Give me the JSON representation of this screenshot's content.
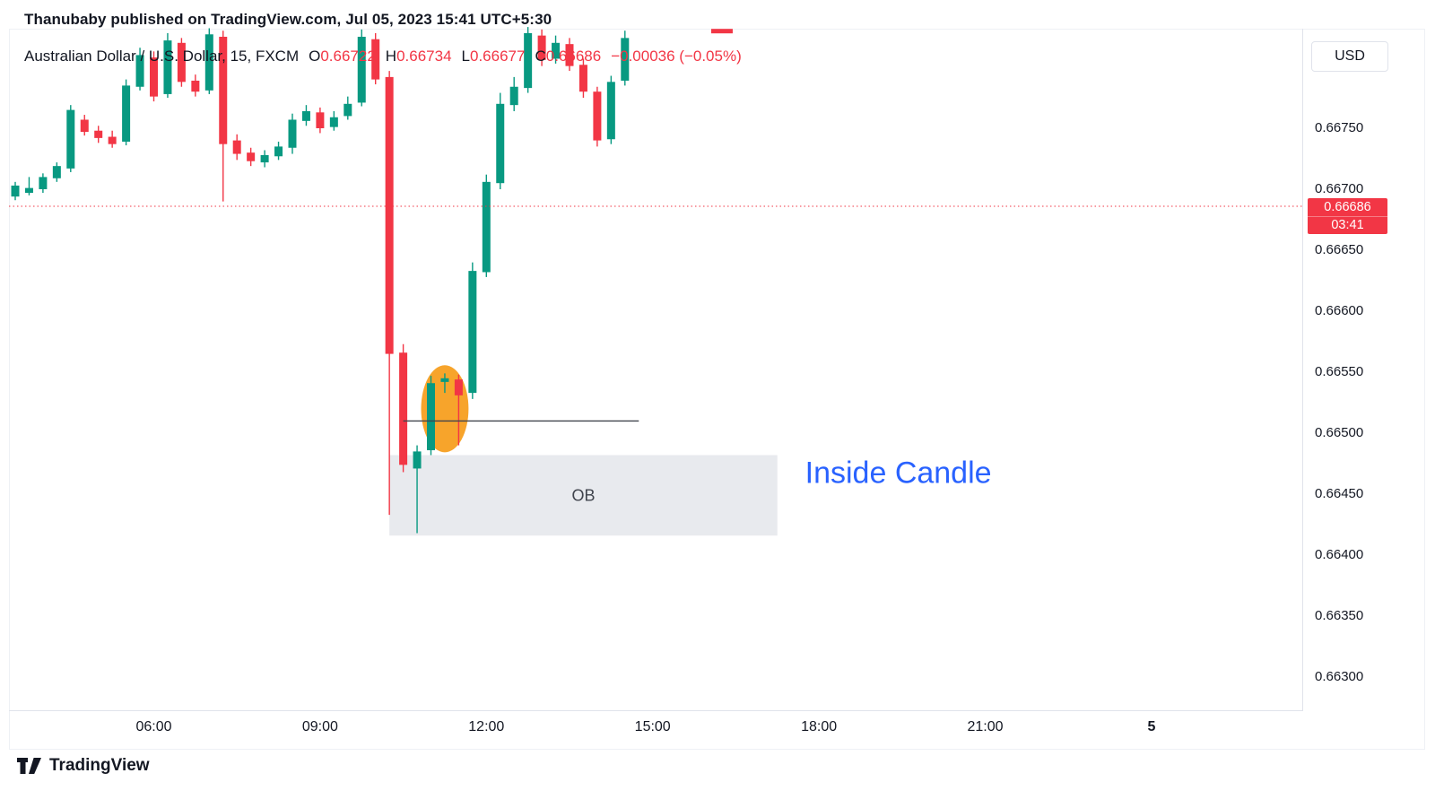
{
  "publisher_line": "Thanubaby published on TradingView.com, Jul 05, 2023 15:41 UTC+5:30",
  "symbol_info": {
    "title": "Australian Dollar / U.S. Dollar, 15, FXCM",
    "ohlc": [
      {
        "key": "O",
        "value": "0.66722"
      },
      {
        "key": "H",
        "value": "0.66734"
      },
      {
        "key": "L",
        "value": "0.66677"
      },
      {
        "key": "C",
        "value": "0.66686"
      }
    ],
    "change": "−0.00036 (−0.05%)"
  },
  "currency_label": "USD",
  "price_scale": {
    "last_price_label": "0.66686",
    "countdown": "03:41"
  },
  "footer": {
    "brand": "TradingView"
  },
  "colors": {
    "up": "#089981",
    "down": "#f23645",
    "accent_red": "#f23645",
    "text_dark": "#131722",
    "annotation_blue": "#2962ff",
    "box_gray": "#e8eaee",
    "orange": "#f7a42b",
    "line_dark": "#40444d",
    "separator": "#e0e3eb"
  },
  "chart_data": {
    "type": "candlestick",
    "title": "Australian Dollar / U.S. Dollar, 15, FXCM",
    "interval_minutes": 15,
    "venue": "FXCM",
    "last_price": 0.66686,
    "y_ticks": [
      "0.66750",
      "0.66700",
      "0.66650",
      "0.66600",
      "0.66550",
      "0.66500",
      "0.66450",
      "0.66400",
      "0.66350",
      "0.66300"
    ],
    "x_ticks": [
      {
        "label": "06:00",
        "time": "06:00",
        "bold": false
      },
      {
        "label": "09:00",
        "time": "09:00",
        "bold": false
      },
      {
        "label": "12:00",
        "time": "12:00",
        "bold": false
      },
      {
        "label": "15:00",
        "time": "15:00",
        "bold": false
      },
      {
        "label": "18:00",
        "time": "18:00",
        "bold": false
      },
      {
        "label": "21:00",
        "time": "21:00",
        "bold": false
      },
      {
        "label": "5",
        "time": "24:00",
        "bold": true
      }
    ],
    "candles": [
      [
        "03:30",
        0.66694,
        0.66706,
        0.66691,
        0.66703
      ],
      [
        "03:45",
        0.66697,
        0.6671,
        0.66695,
        0.66701
      ],
      [
        "04:00",
        0.667,
        0.66713,
        0.66697,
        0.6671
      ],
      [
        "04:15",
        0.66709,
        0.66722,
        0.66706,
        0.66719
      ],
      [
        "04:30",
        0.66717,
        0.66769,
        0.66714,
        0.66765
      ],
      [
        "04:45",
        0.66757,
        0.66761,
        0.66744,
        0.66747
      ],
      [
        "05:00",
        0.66748,
        0.66752,
        0.66738,
        0.66742
      ],
      [
        "05:15",
        0.66743,
        0.66748,
        0.66734,
        0.66737
      ],
      [
        "05:30",
        0.66739,
        0.6679,
        0.66736,
        0.66785
      ],
      [
        "05:45",
        0.66784,
        0.66816,
        0.66781,
        0.6681
      ],
      [
        "06:00",
        0.66808,
        0.66813,
        0.66772,
        0.66776
      ],
      [
        "06:15",
        0.66778,
        0.66828,
        0.66775,
        0.66822
      ],
      [
        "06:30",
        0.6682,
        0.66824,
        0.66784,
        0.66788
      ],
      [
        "06:45",
        0.66789,
        0.66794,
        0.66776,
        0.6678
      ],
      [
        "07:00",
        0.66781,
        0.66832,
        0.66778,
        0.66827
      ],
      [
        "07:15",
        0.66825,
        0.6683,
        0.6669,
        0.66737
      ],
      [
        "07:30",
        0.6674,
        0.66745,
        0.66724,
        0.66729
      ],
      [
        "07:45",
        0.6673,
        0.66734,
        0.66719,
        0.66723
      ],
      [
        "08:00",
        0.66722,
        0.66732,
        0.66718,
        0.66728
      ],
      [
        "08:15",
        0.66727,
        0.66739,
        0.66724,
        0.66735
      ],
      [
        "08:30",
        0.66734,
        0.66762,
        0.66729,
        0.66757
      ],
      [
        "08:45",
        0.66756,
        0.66769,
        0.66752,
        0.66764
      ],
      [
        "09:00",
        0.66763,
        0.66767,
        0.66746,
        0.6675
      ],
      [
        "09:15",
        0.66751,
        0.66764,
        0.66748,
        0.66759
      ],
      [
        "09:30",
        0.6676,
        0.66776,
        0.66757,
        0.6677
      ],
      [
        "09:45",
        0.66771,
        0.66831,
        0.66768,
        0.66825
      ],
      [
        "10:00",
        0.66823,
        0.66828,
        0.66786,
        0.6679
      ],
      [
        "10:15",
        0.66792,
        0.66797,
        0.66433,
        0.66565
      ],
      [
        "10:30",
        0.66566,
        0.66573,
        0.66468,
        0.66474
      ],
      [
        "10:45",
        0.66471,
        0.6649,
        0.66418,
        0.66485
      ],
      [
        "11:00",
        0.66486,
        0.66547,
        0.66482,
        0.66541
      ],
      [
        "11:15",
        0.66542,
        0.66549,
        0.66533,
        0.66545
      ],
      [
        "11:30",
        0.66544,
        0.66548,
        0.6649,
        0.66531
      ],
      [
        "11:45",
        0.66533,
        0.6664,
        0.66528,
        0.66633
      ],
      [
        "12:00",
        0.66632,
        0.66712,
        0.66628,
        0.66706
      ],
      [
        "12:15",
        0.66705,
        0.66779,
        0.667,
        0.6677
      ],
      [
        "12:30",
        0.66769,
        0.66792,
        0.66764,
        0.66784
      ],
      [
        "12:45",
        0.66783,
        0.66833,
        0.66779,
        0.66828
      ],
      [
        "13:00",
        0.66826,
        0.66831,
        0.66801,
        0.66806
      ],
      [
        "13:15",
        0.66807,
        0.66826,
        0.66803,
        0.6682
      ],
      [
        "13:30",
        0.66819,
        0.66824,
        0.66797,
        0.66801
      ],
      [
        "13:45",
        0.66802,
        0.66807,
        0.66775,
        0.6678
      ],
      [
        "14:00",
        0.6678,
        0.66784,
        0.66735,
        0.6674
      ],
      [
        "14:15",
        0.66741,
        0.66793,
        0.66737,
        0.66788
      ],
      [
        "14:30",
        0.66789,
        0.6683,
        0.66785,
        0.66824
      ]
    ],
    "annotations": [
      {
        "id": "ob-box",
        "type": "box",
        "label": "OB",
        "from_time": "10:15",
        "to_time": "17:15",
        "top_price": 0.66482,
        "bottom_price": 0.66416
      },
      {
        "id": "highlight-ellipse",
        "type": "ellipse",
        "from_time": "11:00",
        "to_time": "11:30",
        "top_price": 0.66552,
        "bottom_price": 0.66488
      },
      {
        "id": "level-line",
        "type": "hline",
        "price": 0.6651,
        "from_time": "10:30",
        "to_time": "14:45"
      },
      {
        "id": "inside-candle-label",
        "type": "text",
        "text": "Inside Candle",
        "time": "17:45",
        "price": 0.66468
      },
      {
        "id": "top-dash",
        "type": "dash",
        "time": "16:15",
        "price": 0.6683
      }
    ]
  }
}
